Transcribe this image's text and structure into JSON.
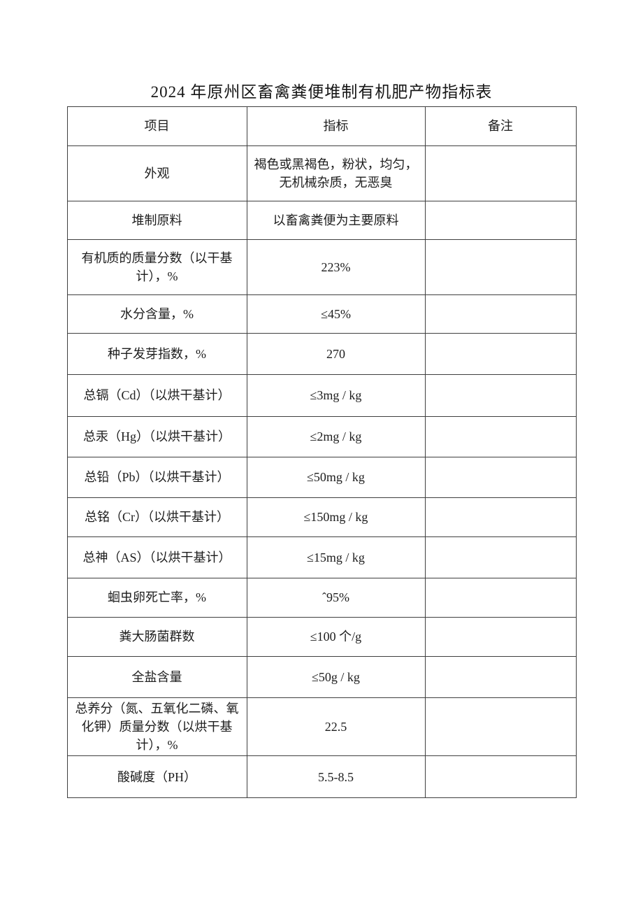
{
  "page": {
    "title": "2024 年原州区畜禽粪便堆制有机肥产物指标表"
  },
  "table": {
    "headers": [
      "项目",
      "指标",
      "备注"
    ],
    "rows": [
      {
        "item": "外观",
        "value": "褐色或黑褐色，粉状，均匀，\n无机械杂质，无恶臭",
        "note": ""
      },
      {
        "item": "堆制原料",
        "value": "以畜禽粪便为主要原料",
        "note": ""
      },
      {
        "item": "有机质的质量分数（以干基\n计），%",
        "value": "223%",
        "note": ""
      },
      {
        "item": "水分含量，%",
        "value": "≤45%",
        "note": ""
      },
      {
        "item": "种子发芽指数，%",
        "value": "270",
        "note": ""
      },
      {
        "item": "总镉（Cd）（以烘干基计）",
        "value": "≤3mg / kg",
        "note": ""
      },
      {
        "item": "总汞（Hg）（以烘干基计）",
        "value": "≤2mg / kg",
        "note": ""
      },
      {
        "item": "总铅（Pb）（以烘干基计）",
        "value": "≤50mg / kg",
        "note": ""
      },
      {
        "item": "总铭（Cr）（以烘干基计）",
        "value": "≤150mg / kg",
        "note": ""
      },
      {
        "item": "总神（AS）（以烘干基计）",
        "value": "≤15mg / kg",
        "note": ""
      },
      {
        "item": "蛔虫卵死亡率，%",
        "value": "ˆ95%",
        "note": ""
      },
      {
        "item": "粪大肠菌群数",
        "value": "≤100 个/g",
        "note": ""
      },
      {
        "item": "全盐含量",
        "value": "≤50g / kg",
        "note": ""
      },
      {
        "item": "总养分（氮、五氧化二磷、氧\n化钾）质量分数（以烘干基\n计），%",
        "value": "22.5",
        "note": ""
      },
      {
        "item": "酸碱度（PH）",
        "value": "5.5-8.5",
        "note": ""
      }
    ]
  }
}
